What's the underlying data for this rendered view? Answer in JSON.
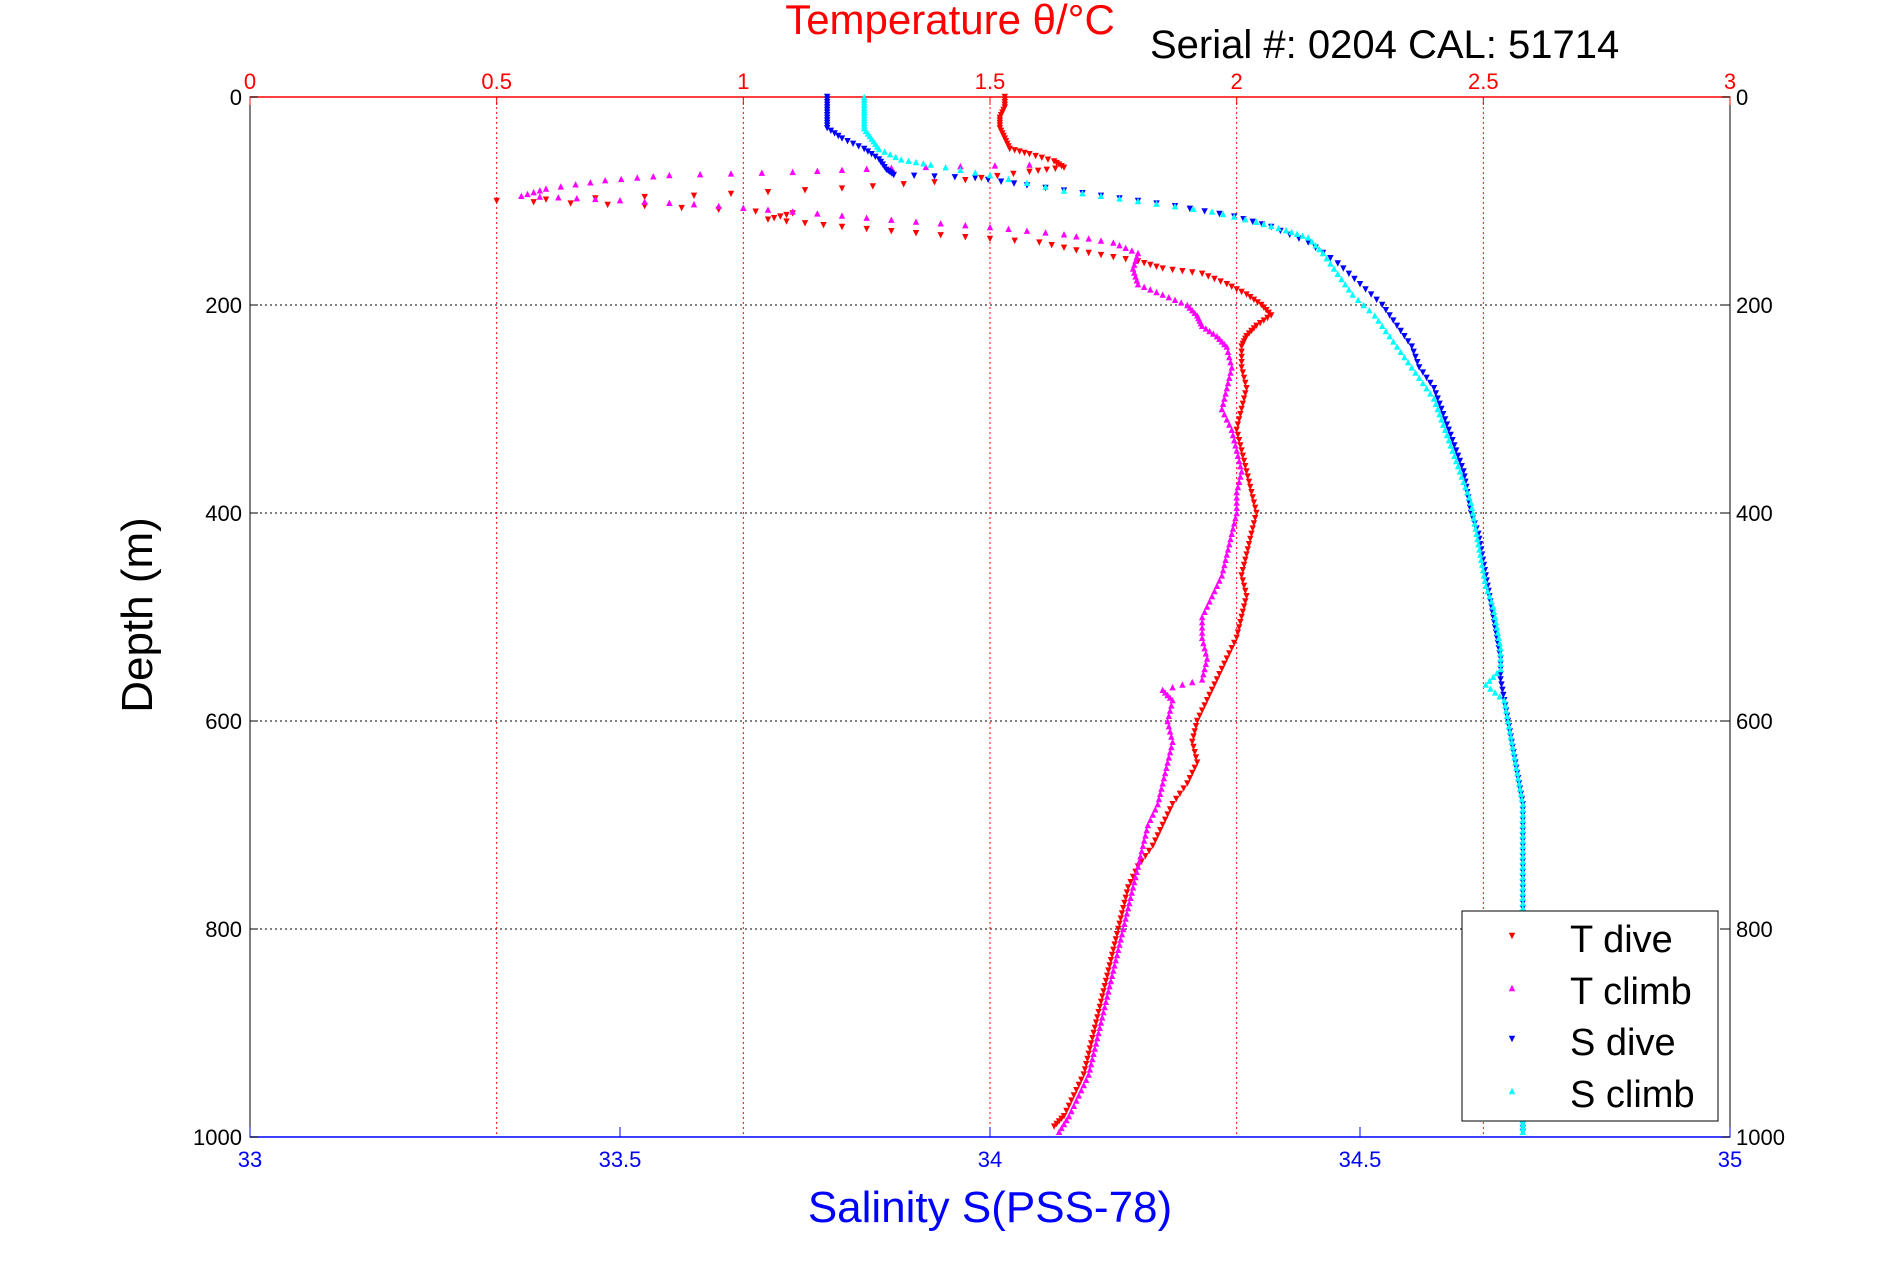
{
  "chart_data": {
    "type": "scatter",
    "title": "Temperature θ/°C",
    "subtitle": "Serial #: 0204  CAL: 51714",
    "ylabel": "Depth (m)",
    "xlabel": "Salinity S(PSS-78)",
    "top_axis": {
      "label": "Temperature θ/°C",
      "lim": [
        0,
        3
      ],
      "ticks": [
        "0",
        "0.5",
        "1",
        "1.5",
        "2",
        "2.5",
        "3"
      ],
      "color": "#ff0000"
    },
    "bottom_axis": {
      "label": "Salinity S(PSS-78)",
      "lim": [
        33,
        35
      ],
      "ticks": [
        "33",
        "33.5",
        "34",
        "34.5",
        "35"
      ],
      "color": "#0000ff"
    },
    "y_axis": {
      "lim": [
        0,
        1000
      ],
      "reversed": true,
      "ticks": [
        "0",
        "200",
        "400",
        "600",
        "800",
        "1000"
      ]
    },
    "grid": true,
    "legend_position": "bottom-right",
    "series": [
      {
        "name": "T dive",
        "axis": "temperature",
        "color": "#ff0000",
        "marker": "triangle-down",
        "points": [
          [
            1.53,
            0
          ],
          [
            1.53,
            10
          ],
          [
            1.52,
            20
          ],
          [
            1.52,
            30
          ],
          [
            1.53,
            40
          ],
          [
            1.54,
            50
          ],
          [
            1.58,
            55
          ],
          [
            1.63,
            62
          ],
          [
            1.65,
            68
          ],
          [
            1.58,
            72
          ],
          [
            1.45,
            80
          ],
          [
            1.2,
            88
          ],
          [
            0.9,
            95
          ],
          [
            0.5,
            100
          ],
          [
            0.8,
            105
          ],
          [
            1.1,
            112
          ],
          [
            1.05,
            118
          ],
          [
            1.2,
            125
          ],
          [
            1.4,
            133
          ],
          [
            1.6,
            140
          ],
          [
            1.7,
            150
          ],
          [
            1.8,
            158
          ],
          [
            1.85,
            165
          ],
          [
            1.93,
            170
          ],
          [
            1.98,
            180
          ],
          [
            2.02,
            190
          ],
          [
            2.05,
            200
          ],
          [
            2.07,
            210
          ],
          [
            2.04,
            220
          ],
          [
            2.02,
            230
          ],
          [
            2.01,
            240
          ],
          [
            2.01,
            260
          ],
          [
            2.02,
            280
          ],
          [
            2.01,
            300
          ],
          [
            2.0,
            320
          ],
          [
            2.01,
            340
          ],
          [
            2.02,
            360
          ],
          [
            2.03,
            380
          ],
          [
            2.04,
            400
          ],
          [
            2.03,
            420
          ],
          [
            2.02,
            440
          ],
          [
            2.01,
            460
          ],
          [
            2.02,
            480
          ],
          [
            2.01,
            500
          ],
          [
            2.0,
            520
          ],
          [
            1.98,
            540
          ],
          [
            1.96,
            560
          ],
          [
            1.94,
            580
          ],
          [
            1.92,
            600
          ],
          [
            1.91,
            620
          ],
          [
            1.92,
            640
          ],
          [
            1.9,
            660
          ],
          [
            1.87,
            680
          ],
          [
            1.85,
            700
          ],
          [
            1.83,
            720
          ],
          [
            1.8,
            740
          ],
          [
            1.78,
            760
          ],
          [
            1.77,
            780
          ],
          [
            1.76,
            800
          ],
          [
            1.75,
            820
          ],
          [
            1.74,
            840
          ],
          [
            1.73,
            860
          ],
          [
            1.72,
            880
          ],
          [
            1.71,
            900
          ],
          [
            1.7,
            920
          ],
          [
            1.69,
            940
          ],
          [
            1.67,
            960
          ],
          [
            1.65,
            980
          ],
          [
            1.63,
            990
          ]
        ]
      },
      {
        "name": "T climb",
        "axis": "temperature",
        "color": "#ff00ff",
        "marker": "triangle-up",
        "points": [
          [
            1.58,
            65
          ],
          [
            1.3,
            68
          ],
          [
            1.1,
            72
          ],
          [
            0.85,
            75
          ],
          [
            0.72,
            80
          ],
          [
            0.6,
            88
          ],
          [
            0.55,
            95
          ],
          [
            0.7,
            98
          ],
          [
            0.9,
            103
          ],
          [
            1.1,
            110
          ],
          [
            1.3,
            118
          ],
          [
            1.5,
            125
          ],
          [
            1.65,
            132
          ],
          [
            1.75,
            140
          ],
          [
            1.8,
            150
          ],
          [
            1.79,
            165
          ],
          [
            1.8,
            180
          ],
          [
            1.85,
            190
          ],
          [
            1.9,
            200
          ],
          [
            1.92,
            210
          ],
          [
            1.93,
            220
          ],
          [
            1.96,
            230
          ],
          [
            1.98,
            240
          ],
          [
            1.99,
            260
          ],
          [
            1.98,
            280
          ],
          [
            1.97,
            300
          ],
          [
            1.99,
            320
          ],
          [
            2.0,
            340
          ],
          [
            2.01,
            360
          ],
          [
            2.0,
            380
          ],
          [
            2.0,
            400
          ],
          [
            1.99,
            420
          ],
          [
            1.98,
            440
          ],
          [
            1.97,
            460
          ],
          [
            1.95,
            480
          ],
          [
            1.93,
            500
          ],
          [
            1.93,
            520
          ],
          [
            1.94,
            540
          ],
          [
            1.93,
            560
          ],
          [
            1.85,
            570
          ],
          [
            1.87,
            580
          ],
          [
            1.86,
            600
          ],
          [
            1.87,
            620
          ],
          [
            1.86,
            640
          ],
          [
            1.85,
            660
          ],
          [
            1.84,
            680
          ],
          [
            1.82,
            700
          ],
          [
            1.81,
            720
          ],
          [
            1.8,
            740
          ],
          [
            1.79,
            760
          ],
          [
            1.78,
            780
          ],
          [
            1.77,
            800
          ],
          [
            1.76,
            820
          ],
          [
            1.75,
            840
          ],
          [
            1.74,
            860
          ],
          [
            1.73,
            880
          ],
          [
            1.72,
            900
          ],
          [
            1.71,
            920
          ],
          [
            1.7,
            940
          ],
          [
            1.68,
            960
          ],
          [
            1.66,
            980
          ],
          [
            1.64,
            995
          ]
        ]
      },
      {
        "name": "S dive",
        "axis": "salinity",
        "color": "#0000ff",
        "marker": "triangle-down",
        "points": [
          [
            33.78,
            0
          ],
          [
            33.78,
            10
          ],
          [
            33.78,
            20
          ],
          [
            33.78,
            30
          ],
          [
            33.8,
            40
          ],
          [
            33.83,
            50
          ],
          [
            33.85,
            60
          ],
          [
            33.86,
            70
          ],
          [
            33.87,
            75
          ],
          [
            33.98,
            78
          ],
          [
            34.05,
            85
          ],
          [
            34.15,
            95
          ],
          [
            34.25,
            105
          ],
          [
            34.33,
            115
          ],
          [
            34.38,
            125
          ],
          [
            34.43,
            140
          ],
          [
            34.47,
            160
          ],
          [
            34.5,
            180
          ],
          [
            34.53,
            200
          ],
          [
            34.55,
            220
          ],
          [
            34.57,
            240
          ],
          [
            34.58,
            260
          ],
          [
            34.6,
            280
          ],
          [
            34.61,
            300
          ],
          [
            34.62,
            320
          ],
          [
            34.63,
            340
          ],
          [
            34.64,
            360
          ],
          [
            34.645,
            380
          ],
          [
            34.65,
            400
          ],
          [
            34.66,
            420
          ],
          [
            34.665,
            440
          ],
          [
            34.67,
            460
          ],
          [
            34.675,
            480
          ],
          [
            34.68,
            500
          ],
          [
            34.685,
            520
          ],
          [
            34.69,
            540
          ],
          [
            34.69,
            560
          ],
          [
            34.695,
            580
          ],
          [
            34.7,
            600
          ],
          [
            34.705,
            620
          ],
          [
            34.71,
            640
          ],
          [
            34.715,
            660
          ],
          [
            34.72,
            680
          ],
          [
            34.72,
            700
          ],
          [
            34.72,
            720
          ],
          [
            34.72,
            740
          ],
          [
            34.72,
            760
          ],
          [
            34.72,
            780
          ],
          [
            34.72,
            800
          ],
          [
            34.72,
            820
          ],
          [
            34.72,
            840
          ],
          [
            34.72,
            860
          ],
          [
            34.72,
            880
          ],
          [
            34.72,
            900
          ],
          [
            34.72,
            920
          ],
          [
            34.72,
            940
          ],
          [
            34.72,
            960
          ],
          [
            34.72,
            980
          ],
          [
            34.72,
            995
          ]
        ]
      },
      {
        "name": "S climb",
        "axis": "salinity",
        "color": "#00ffff",
        "marker": "triangle-up",
        "points": [
          [
            33.83,
            0
          ],
          [
            33.83,
            10
          ],
          [
            33.83,
            20
          ],
          [
            33.83,
            30
          ],
          [
            33.84,
            40
          ],
          [
            33.85,
            50
          ],
          [
            33.88,
            60
          ],
          [
            33.92,
            65
          ],
          [
            34.0,
            75
          ],
          [
            34.1,
            90
          ],
          [
            34.2,
            100
          ],
          [
            34.3,
            110
          ],
          [
            34.36,
            120
          ],
          [
            34.4,
            128
          ],
          [
            34.43,
            135
          ],
          [
            34.45,
            150
          ],
          [
            34.47,
            170
          ],
          [
            34.49,
            190
          ],
          [
            34.52,
            210
          ],
          [
            34.54,
            230
          ],
          [
            34.56,
            250
          ],
          [
            34.58,
            270
          ],
          [
            34.6,
            290
          ],
          [
            34.61,
            310
          ],
          [
            34.62,
            330
          ],
          [
            34.63,
            350
          ],
          [
            34.64,
            370
          ],
          [
            34.65,
            390
          ],
          [
            34.655,
            410
          ],
          [
            34.66,
            430
          ],
          [
            34.665,
            450
          ],
          [
            34.67,
            470
          ],
          [
            34.68,
            490
          ],
          [
            34.685,
            510
          ],
          [
            34.69,
            530
          ],
          [
            34.69,
            550
          ],
          [
            34.67,
            565
          ],
          [
            34.695,
            580
          ],
          [
            34.7,
            600
          ],
          [
            34.705,
            620
          ],
          [
            34.71,
            640
          ],
          [
            34.715,
            660
          ],
          [
            34.72,
            680
          ],
          [
            34.72,
            700
          ],
          [
            34.72,
            720
          ],
          [
            34.72,
            740
          ],
          [
            34.72,
            760
          ],
          [
            34.72,
            780
          ],
          [
            34.72,
            800
          ],
          [
            34.72,
            820
          ],
          [
            34.72,
            840
          ],
          [
            34.72,
            860
          ],
          [
            34.72,
            880
          ],
          [
            34.72,
            900
          ],
          [
            34.72,
            920
          ],
          [
            34.72,
            940
          ],
          [
            34.72,
            960
          ],
          [
            34.72,
            980
          ],
          [
            34.72,
            995
          ]
        ]
      }
    ]
  }
}
